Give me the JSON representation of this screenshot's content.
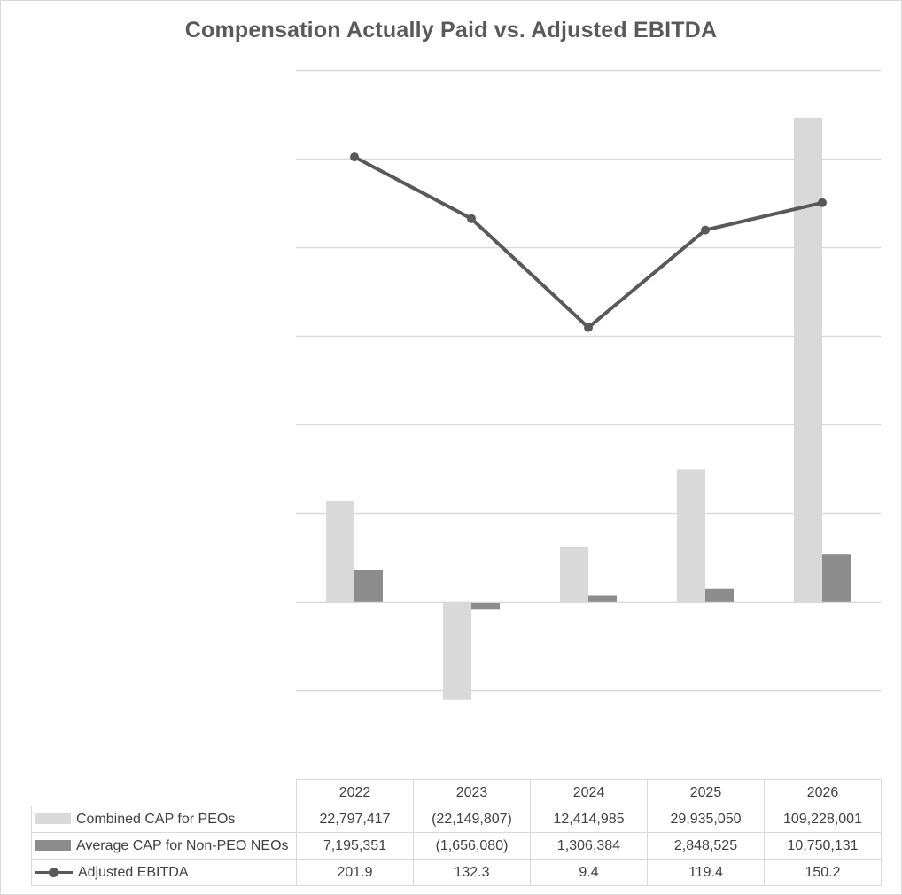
{
  "chart_data": {
    "type": "bar",
    "title": "Compensation Actually Paid vs. Adjusted EBITDA",
    "categories": [
      "2022",
      "2023",
      "2024",
      "2025",
      "2026"
    ],
    "series": [
      {
        "name": "Combined CAP for PEOs",
        "kind": "bar",
        "color": "#d9d9d9",
        "values": [
          22797417,
          -22149807,
          12414985,
          29935050,
          109228001
        ],
        "labels": [
          "22,797,417",
          "(22,149,807)",
          "12,414,985",
          "29,935,050",
          "109,228,001"
        ]
      },
      {
        "name": "Average CAP for Non-PEO NEOs",
        "kind": "bar",
        "color": "#8c8c8c",
        "values": [
          7195351,
          -1656080,
          1306384,
          2848525,
          10750131
        ],
        "labels": [
          "7,195,351",
          "(1,656,080)",
          "1,306,384",
          "2,848,525",
          "10,750,131"
        ]
      },
      {
        "name": "Adjusted EBITDA",
        "kind": "line",
        "color": "#595959",
        "values": [
          201.9,
          132.3,
          9.4,
          119.4,
          150.2
        ],
        "labels": [
          "201.9",
          "132.3",
          "9.4",
          "119.4",
          "150.2"
        ]
      }
    ],
    "primary_axis": {
      "range": [
        -20000000,
        120000000
      ],
      "step": 20000000,
      "tick_labels_shown": false
    },
    "secondary_axis": {
      "range": [
        -400,
        300
      ],
      "tick_labels_shown": false
    },
    "grid": true,
    "legend": "data-table"
  }
}
